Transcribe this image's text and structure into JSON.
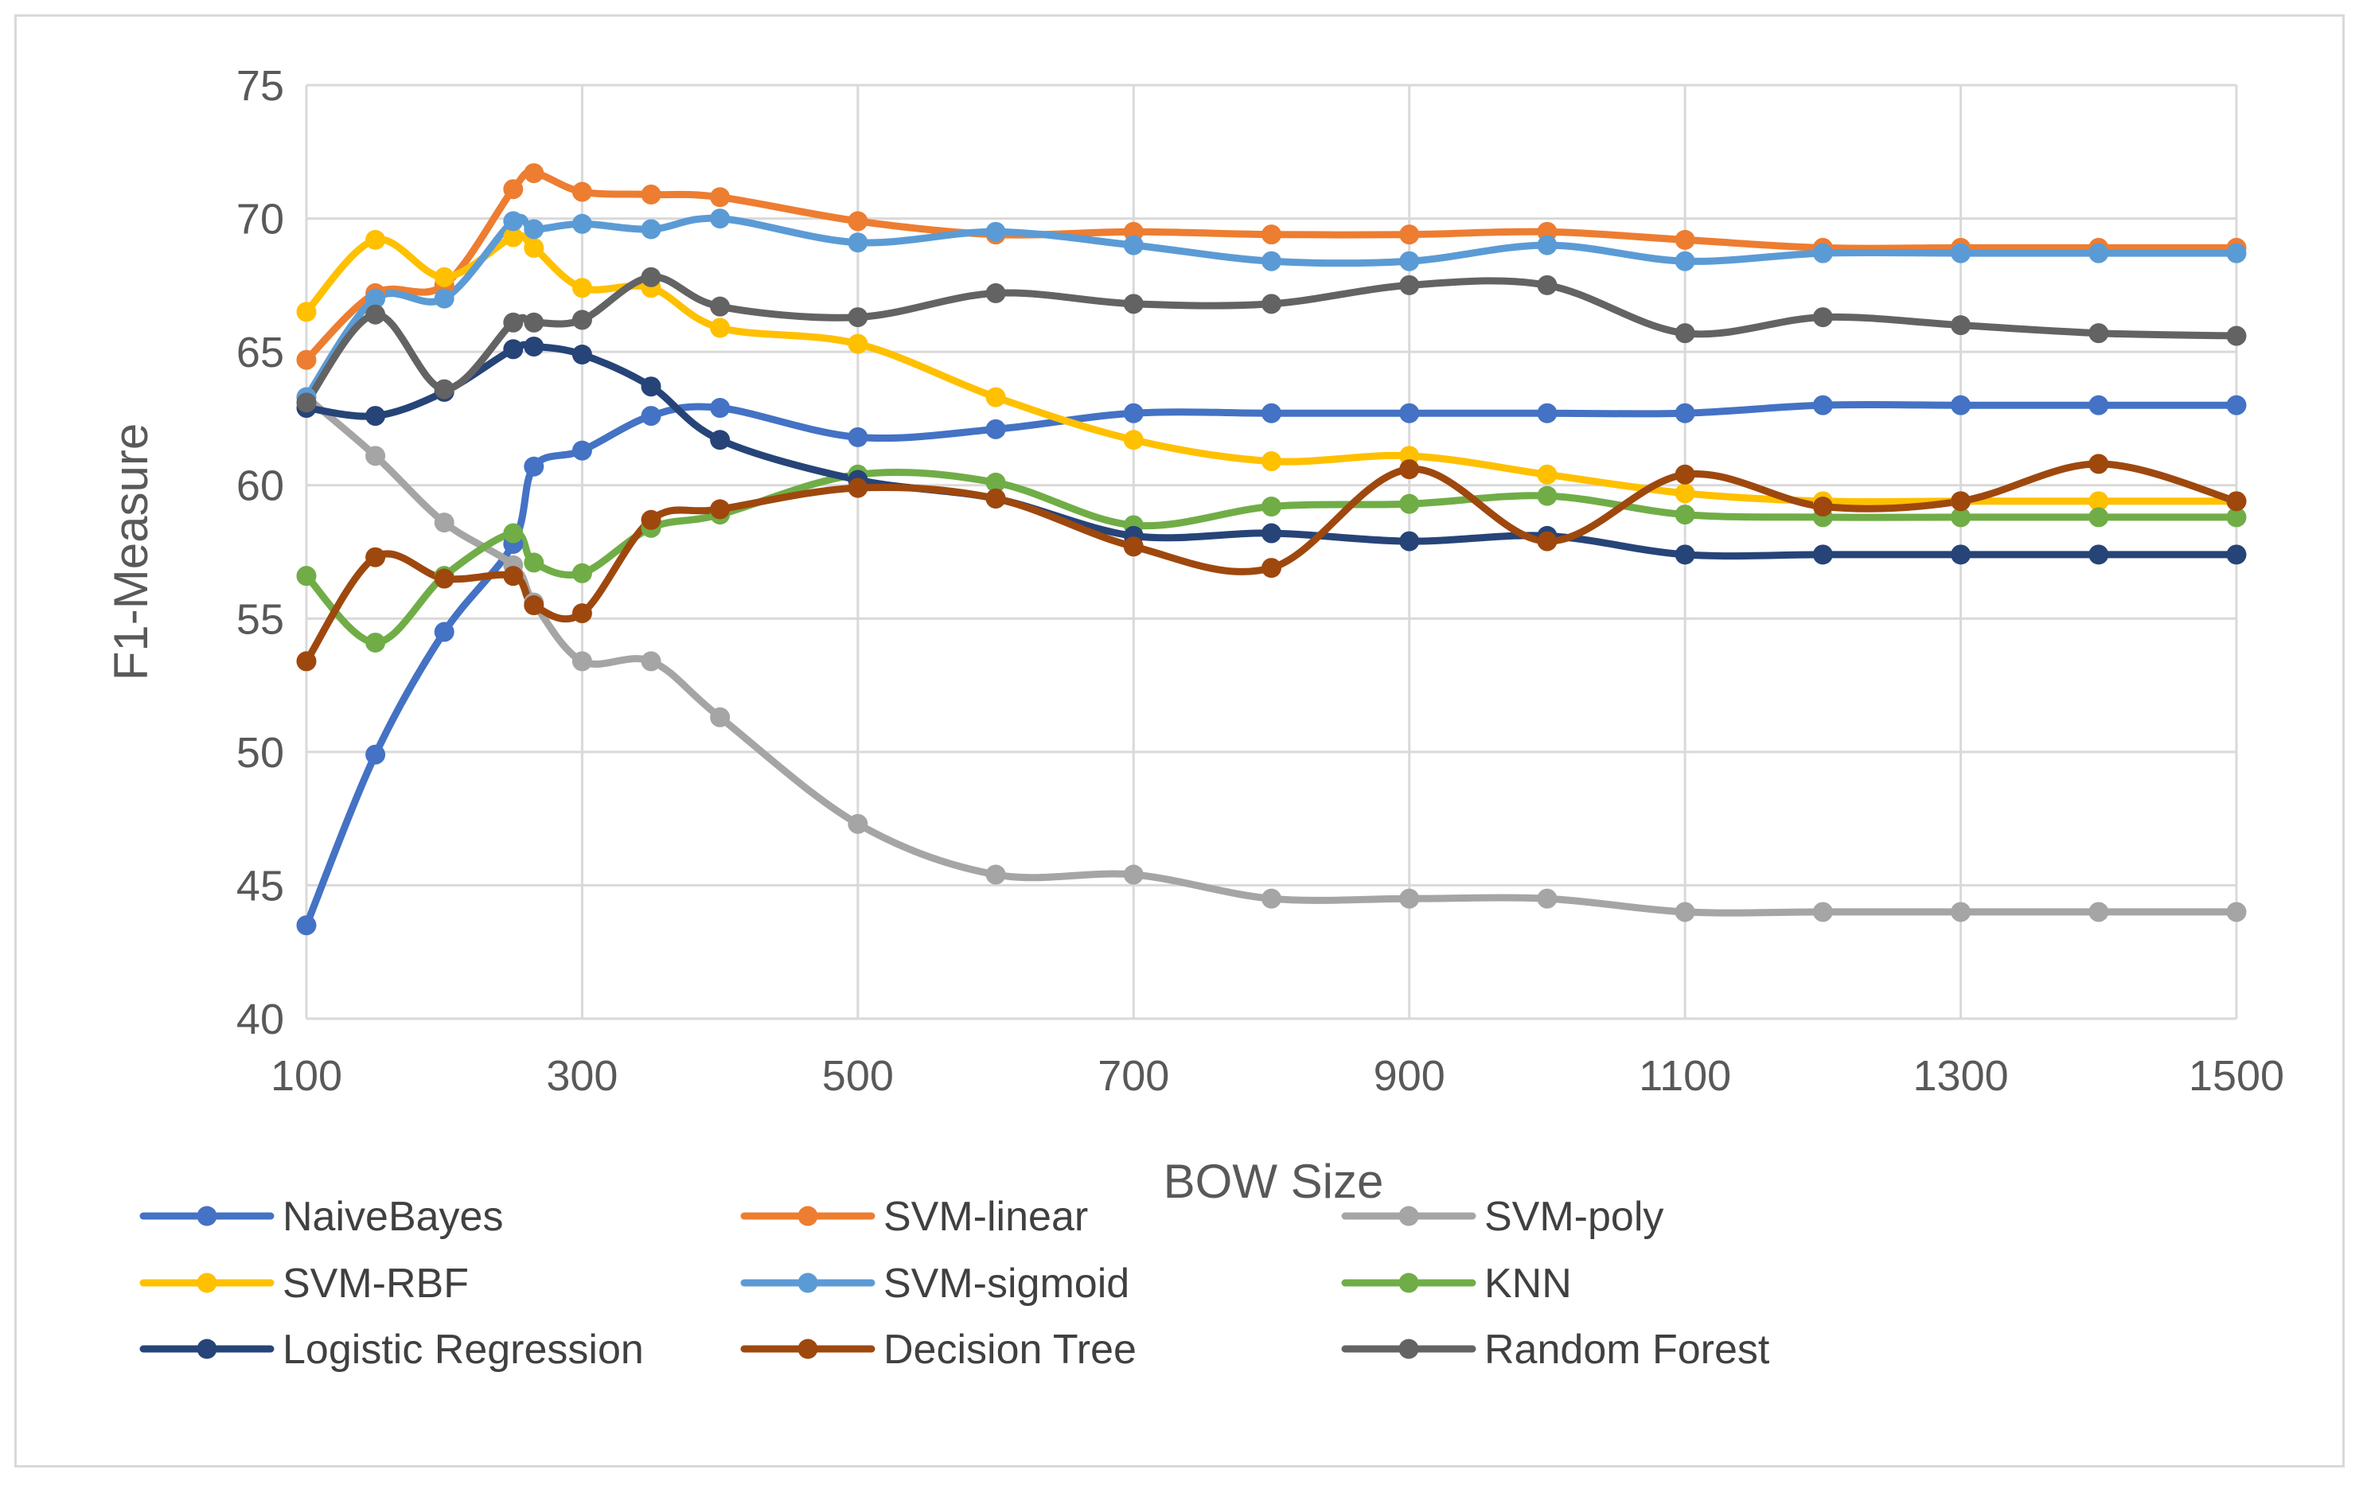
{
  "chart_data": {
    "type": "line",
    "title": "",
    "xlabel": "BOW Size",
    "ylabel": "F1-Measure",
    "xlim": [
      100,
      1500
    ],
    "ylim": [
      40,
      75
    ],
    "x_ticks": [
      100,
      300,
      500,
      700,
      900,
      1100,
      1300,
      1500
    ],
    "y_ticks": [
      40,
      45,
      50,
      55,
      60,
      65,
      70,
      75
    ],
    "grid": true,
    "smooth": true,
    "legend_position": "bottom",
    "x": [
      100,
      150,
      200,
      250,
      265,
      300,
      350,
      400,
      500,
      600,
      700,
      800,
      900,
      1000,
      1100,
      1200,
      1300,
      1400,
      1500
    ],
    "series": [
      {
        "name": "NaiveBayes",
        "color": "#4472C4",
        "values": [
          43.5,
          49.9,
          54.5,
          57.8,
          60.7,
          61.3,
          62.6,
          62.9,
          61.8,
          62.1,
          62.7,
          62.7,
          62.7,
          62.7,
          62.7,
          63.0,
          63.0,
          63.0,
          63.0
        ]
      },
      {
        "name": "SVM-linear",
        "color": "#ED7D31",
        "values": [
          64.7,
          67.2,
          67.5,
          71.1,
          71.7,
          71.0,
          70.9,
          70.8,
          69.9,
          69.4,
          69.5,
          69.4,
          69.4,
          69.5,
          69.2,
          68.9,
          68.9,
          68.9,
          68.9
        ]
      },
      {
        "name": "SVM-poly",
        "color": "#A5A5A5",
        "values": [
          63.3,
          61.1,
          58.6,
          57.0,
          55.6,
          53.4,
          53.4,
          51.3,
          47.3,
          45.4,
          45.4,
          44.5,
          44.5,
          44.5,
          44.0,
          44.0,
          44.0,
          44.0,
          44.0
        ]
      },
      {
        "name": "SVM-RBF",
        "color": "#FFC000",
        "values": [
          66.5,
          69.2,
          67.8,
          69.3,
          68.9,
          67.4,
          67.4,
          65.9,
          65.3,
          63.3,
          61.7,
          60.9,
          61.1,
          60.4,
          59.7,
          59.4,
          59.4,
          59.4,
          59.4
        ]
      },
      {
        "name": "SVM-sigmoid",
        "color": "#5B9BD5",
        "values": [
          63.3,
          67.0,
          67.0,
          69.9,
          69.6,
          69.8,
          69.6,
          70.0,
          69.1,
          69.5,
          69.0,
          68.4,
          68.4,
          69.0,
          68.4,
          68.7,
          68.7,
          68.7,
          68.7
        ]
      },
      {
        "name": "KNN",
        "color": "#70AD47",
        "values": [
          56.6,
          54.1,
          56.6,
          58.2,
          57.1,
          56.7,
          58.4,
          58.9,
          60.4,
          60.1,
          58.5,
          59.2,
          59.3,
          59.6,
          58.9,
          58.8,
          58.8,
          58.8,
          58.8
        ]
      },
      {
        "name": "Logistic Regression",
        "color": "#264478",
        "values": [
          62.9,
          62.6,
          63.5,
          65.1,
          65.2,
          64.9,
          63.7,
          61.7,
          60.2,
          59.5,
          58.1,
          58.2,
          57.9,
          58.1,
          57.4,
          57.4,
          57.4,
          57.4,
          57.4
        ]
      },
      {
        "name": "Decision Tree",
        "color": "#9E480E",
        "values": [
          53.4,
          57.3,
          56.5,
          56.6,
          55.5,
          55.2,
          58.7,
          59.1,
          59.9,
          59.5,
          57.7,
          56.9,
          60.6,
          57.9,
          60.4,
          59.2,
          59.4,
          60.8,
          59.4
        ]
      },
      {
        "name": "Random Forest",
        "color": "#636363",
        "values": [
          63.1,
          66.4,
          63.6,
          66.1,
          66.1,
          66.2,
          67.8,
          66.7,
          66.3,
          67.2,
          66.8,
          66.8,
          67.5,
          67.5,
          65.7,
          66.3,
          66.0,
          65.7,
          65.6
        ]
      }
    ]
  }
}
